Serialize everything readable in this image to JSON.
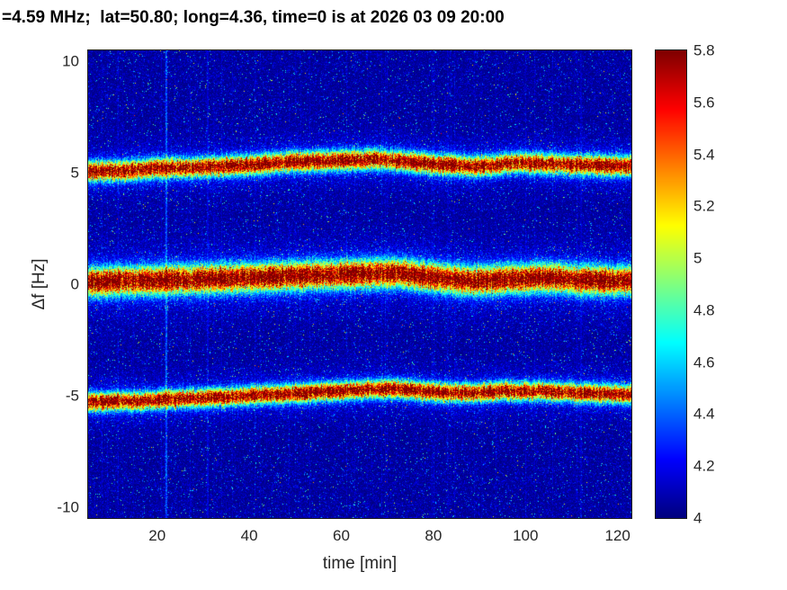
{
  "chart_data": {
    "type": "heatmap",
    "title": "=4.59 MHz;  lat=50.80; long=4.36, time=0 is at 2026 03 09 20:00",
    "xlabel": "time [min]",
    "ylabel": "Δf [Hz]",
    "x_range": [
      5,
      123
    ],
    "y_range": [
      -10.5,
      10.5
    ],
    "x_ticks": [
      20,
      40,
      60,
      80,
      100,
      120
    ],
    "y_ticks": [
      -10,
      -5,
      0,
      5,
      10
    ],
    "colormap": "jet",
    "color_range": [
      4,
      5.8
    ],
    "colorbar_ticks": [
      4,
      4.2,
      4.4,
      4.6,
      4.8,
      5,
      5.2,
      5.4,
      5.6,
      5.8
    ],
    "colorbar_position": "right",
    "grid": false,
    "background_level": 4.0,
    "colors": {
      "figure_background": "#ffffff",
      "low_value": "#00008f",
      "high_value": "#7f0000",
      "title_text": "#000000",
      "axis_text": "#262626"
    },
    "bands": [
      {
        "name": "upper-doppler-trace",
        "sigma": 0.28,
        "amp": 1.9,
        "points": [
          [
            5,
            5.05
          ],
          [
            12,
            5.1
          ],
          [
            20,
            5.2
          ],
          [
            30,
            5.25
          ],
          [
            40,
            5.35
          ],
          [
            50,
            5.5
          ],
          [
            60,
            5.55
          ],
          [
            68,
            5.6
          ],
          [
            75,
            5.5
          ],
          [
            82,
            5.35
          ],
          [
            90,
            5.3
          ],
          [
            98,
            5.45
          ],
          [
            105,
            5.4
          ],
          [
            112,
            5.35
          ],
          [
            123,
            5.3
          ]
        ]
      },
      {
        "name": "carrier-doppler-trace",
        "sigma": 0.4,
        "amp": 2.0,
        "points": [
          [
            5,
            0.1
          ],
          [
            15,
            0.15
          ],
          [
            25,
            0.2
          ],
          [
            40,
            0.3
          ],
          [
            55,
            0.4
          ],
          [
            65,
            0.45
          ],
          [
            72,
            0.5
          ],
          [
            80,
            0.3
          ],
          [
            88,
            0.15
          ],
          [
            95,
            0.2
          ],
          [
            103,
            0.3
          ],
          [
            112,
            0.2
          ],
          [
            123,
            0.15
          ]
        ]
      },
      {
        "name": "lower-doppler-trace",
        "sigma": 0.26,
        "amp": 1.9,
        "points": [
          [
            5,
            -5.3
          ],
          [
            15,
            -5.25
          ],
          [
            25,
            -5.15
          ],
          [
            40,
            -5.0
          ],
          [
            55,
            -4.85
          ],
          [
            65,
            -4.75
          ],
          [
            72,
            -4.7
          ],
          [
            80,
            -4.85
          ],
          [
            88,
            -4.9
          ],
          [
            95,
            -4.8
          ],
          [
            103,
            -4.8
          ],
          [
            112,
            -4.9
          ],
          [
            123,
            -4.95
          ]
        ]
      }
    ],
    "artifact_columns": [
      {
        "t": 22,
        "strength": 0.35
      },
      {
        "t": 31,
        "strength": 0.12
      },
      {
        "t": 112,
        "strength": 0.08
      }
    ],
    "noise": {
      "background_exp_scale": 0.07,
      "speckle_prob": 0.015,
      "bright_speckle_prob": 0.002
    }
  }
}
